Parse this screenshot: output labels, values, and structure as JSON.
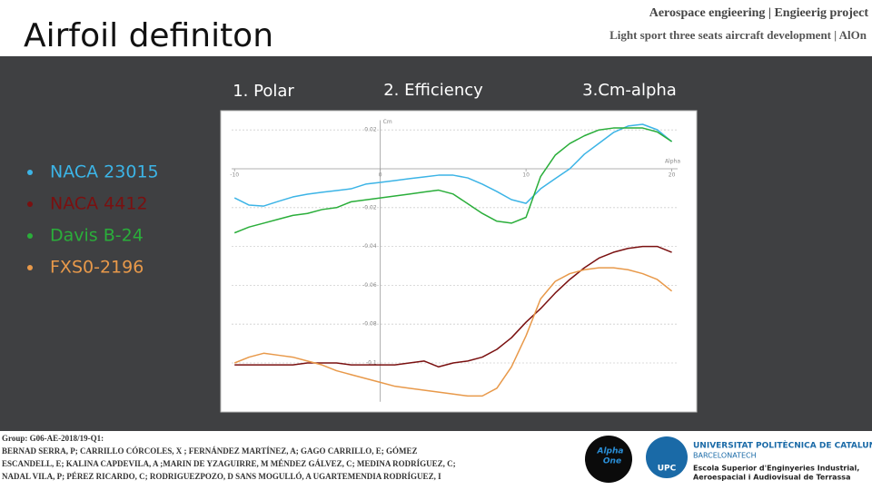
{
  "header": {
    "title": "Airfoil definiton",
    "line1": "Aerospace engieering | Engieerig project",
    "line2": "Light sport three seats aircraft development | AlOn"
  },
  "tabs": [
    "1. Polar",
    "2. Efficiency",
    "3.Cm-alpha"
  ],
  "chart_data": {
    "type": "line",
    "x_label": "Alpha",
    "y_label": "Cm",
    "x": [
      -10,
      -9,
      -8,
      -7,
      -6,
      -5,
      -4,
      -3,
      -2,
      -1,
      0,
      1,
      2,
      3,
      4,
      5,
      6,
      7,
      8,
      9,
      10,
      11,
      12,
      13,
      14,
      15,
      16,
      17,
      18,
      19,
      20
    ],
    "xlim": [
      -10.2,
      20.4
    ],
    "xticks": [
      -10,
      0,
      10,
      20
    ],
    "ylim": [
      -0.12,
      0.025
    ],
    "yticks": [
      0.02,
      -0.02,
      -0.04,
      -0.06,
      -0.08,
      -0.1
    ],
    "grid": true,
    "series": [
      {
        "name": "NACA 23015",
        "color": "#3cb4e6",
        "values": [
          -0.015,
          -0.0187,
          -0.0192,
          -0.0168,
          -0.0145,
          -0.0131,
          -0.0121,
          -0.0112,
          -0.0103,
          -0.0079,
          -0.007,
          -0.0061,
          -0.0051,
          -0.0042,
          -0.0033,
          -0.0033,
          -0.0047,
          -0.0079,
          -0.0117,
          -0.0159,
          -0.0178,
          -0.0103,
          -0.0051,
          0,
          0.0075,
          0.0131,
          0.0187,
          0.022,
          0.0229,
          0.0201,
          0.014
        ]
      },
      {
        "name": "NACA 4412",
        "color": "#7a1010",
        "values": [
          -0.101,
          -0.101,
          -0.101,
          -0.101,
          -0.101,
          -0.1,
          -0.1,
          -0.1,
          -0.101,
          -0.101,
          -0.101,
          -0.101,
          -0.1,
          -0.099,
          -0.102,
          -0.1,
          -0.099,
          -0.097,
          -0.093,
          -0.087,
          -0.079,
          -0.072,
          -0.064,
          -0.057,
          -0.051,
          -0.046,
          -0.043,
          -0.041,
          -0.04,
          -0.04,
          -0.043
        ]
      },
      {
        "name": "Davis B-24",
        "color": "#2aae3a",
        "values": [
          -0.033,
          -0.03,
          -0.028,
          -0.026,
          -0.024,
          -0.023,
          -0.021,
          -0.02,
          -0.017,
          -0.016,
          -0.015,
          -0.014,
          -0.013,
          -0.012,
          -0.011,
          -0.013,
          -0.018,
          -0.023,
          -0.027,
          -0.028,
          -0.025,
          -0.004,
          0.007,
          0.013,
          0.017,
          0.02,
          0.021,
          0.021,
          0.021,
          0.019,
          0.014
        ]
      },
      {
        "name": "FXS0-2196",
        "color": "#e8994a",
        "values": [
          -0.1,
          -0.097,
          -0.095,
          -0.096,
          -0.097,
          -0.099,
          -0.101,
          -0.104,
          -0.106,
          -0.108,
          -0.11,
          -0.112,
          -0.113,
          -0.114,
          -0.115,
          -0.116,
          -0.117,
          -0.117,
          -0.113,
          -0.102,
          -0.086,
          -0.067,
          -0.058,
          -0.054,
          -0.052,
          -0.051,
          -0.051,
          -0.052,
          -0.054,
          -0.057,
          -0.063
        ]
      }
    ]
  },
  "footer": {
    "group": "Group: G06-AE-2018/19-Q1:",
    "authors": [
      "BERNAD SERRA, P; CARRILLO CÓRCOLES, X ; FERNÁNDEZ MARTÍNEZ, A; GAGO CARRILLO, E; GÓMEZ",
      "ESCANDELL, E; KALINA CAPDEVILA, A ;MARIN DE YZAGUIRRE, M MÉNDEZ GÁLVEZ, C; MEDINA RODRÍGUEZ, C;",
      "NADAL VILA, P; PÉREZ RICARDO, C; RODRIGUEZPOZO, D SANS MOGULLÓ, A UGARTEMENDIA RODRÍGUEZ, I"
    ],
    "logo1": [
      "Alpha",
      "One"
    ],
    "logo2": "UPC",
    "university": [
      "UNIVERSITAT POLITÈCNICA DE CATALUNYA",
      "BARCELONATECH"
    ],
    "school": [
      "Escola Superior d'Enginyeries Industrial,",
      "Aeroespacial i Audiovisual de Terrassa"
    ]
  }
}
